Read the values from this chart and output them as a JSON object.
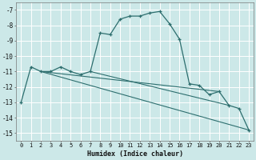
{
  "xlabel": "Humidex (Indice chaleur)",
  "ylabel": "",
  "bg_color": "#cce8e8",
  "grid_color": "#ffffff",
  "line_color": "#2d6e6e",
  "xlim": [
    -0.5,
    23.5
  ],
  "ylim": [
    -15.5,
    -6.5
  ],
  "yticks": [
    -15,
    -14,
    -13,
    -12,
    -11,
    -10,
    -9,
    -8,
    -7
  ],
  "xticks": [
    0,
    1,
    2,
    3,
    4,
    5,
    6,
    7,
    8,
    9,
    10,
    11,
    12,
    13,
    14,
    15,
    16,
    17,
    18,
    19,
    20,
    21,
    22,
    23
  ],
  "series": [
    {
      "x": [
        0,
        1,
        2,
        3,
        4,
        5,
        6,
        7,
        8,
        9,
        10,
        11,
        12,
        13,
        14,
        15,
        16,
        17,
        18,
        19,
        20,
        21,
        22,
        23
      ],
      "y": [
        -13.0,
        -10.7,
        -11.0,
        -11.0,
        -10.7,
        -11.0,
        -11.2,
        -11.0,
        -8.5,
        -8.6,
        -7.6,
        -7.4,
        -7.4,
        -7.2,
        -7.1,
        -7.9,
        -8.9,
        -11.8,
        -11.9,
        -12.5,
        -12.3,
        -13.2,
        -13.4,
        -14.8
      ],
      "marker": true
    },
    {
      "x": [
        2,
        23
      ],
      "y": [
        -11.0,
        -14.8
      ],
      "marker": false
    },
    {
      "x": [
        2,
        20
      ],
      "y": [
        -11.0,
        -12.3
      ],
      "marker": false
    },
    {
      "x": [
        7,
        21
      ],
      "y": [
        -11.0,
        -13.2
      ],
      "marker": false
    }
  ]
}
